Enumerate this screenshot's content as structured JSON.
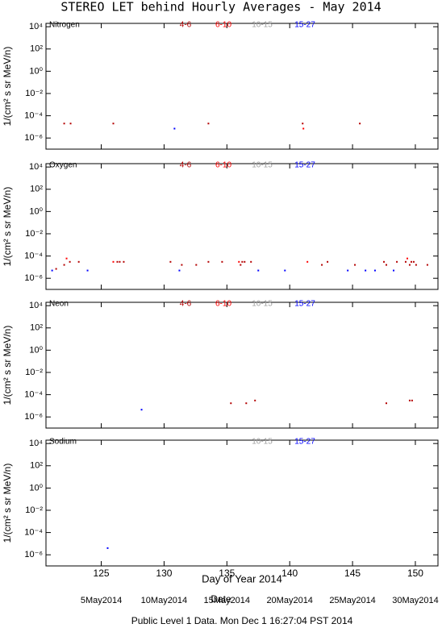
{
  "title": "STEREO LET behind Hourly Averages - May 2014",
  "footer": "Public Level 1 Data. Mon Dec  1 16:27:04 PST 2014",
  "date_axis": {
    "label": "Date",
    "ticks": [
      {
        "value": 125,
        "label": "5May2014"
      },
      {
        "value": 130,
        "label": "10May2014"
      },
      {
        "value": 135,
        "label": "15May2014"
      },
      {
        "value": 140,
        "label": "20May2014"
      },
      {
        "value": 145,
        "label": "25May2014"
      },
      {
        "value": 150,
        "label": "30May2014"
      }
    ]
  },
  "chart_data": [
    {
      "type": "scatter",
      "title": "Nitrogen",
      "ylabel": "1/(cm² s sr MeV/n)",
      "log_y": true,
      "xlim": [
        120.6,
        151.8
      ],
      "ylim": [
        1e-07,
        20000
      ],
      "xticks": [
        125,
        130,
        135,
        140,
        145,
        150
      ],
      "yticks": [
        {
          "value": 10000,
          "label": "10⁴"
        },
        {
          "value": 100,
          "label": "10²"
        },
        {
          "value": 1,
          "label": "10⁰"
        },
        {
          "value": 0.01,
          "label": "10⁻²"
        },
        {
          "value": 0.0001,
          "label": "10⁻⁴"
        },
        {
          "value": 1e-06,
          "label": "10⁻⁶"
        }
      ],
      "series": [
        {
          "name": "4-6",
          "color": "#b40000",
          "x": [
            122.05,
            122.56,
            125.96,
            133.53,
            141.03,
            145.58
          ],
          "values": [
            2e-05,
            2e-05,
            2e-05,
            2e-05,
            2e-05,
            2e-05
          ]
        },
        {
          "name": "6-10",
          "color": "#ff0000",
          "x": [
            141.09
          ],
          "values": [
            7e-06
          ]
        },
        {
          "name": "10-15",
          "color": "#a0a0a0",
          "x": [],
          "values": []
        },
        {
          "name": "15-27",
          "color": "#0000ff",
          "x": [
            130.83
          ],
          "values": [
            7e-06
          ]
        }
      ]
    },
    {
      "type": "scatter",
      "title": "Oxygen",
      "ylabel": "1/(cm² s sr MeV/n)",
      "log_y": true,
      "xlim": [
        120.6,
        151.8
      ],
      "ylim": [
        1e-07,
        20000
      ],
      "xticks": [
        125,
        130,
        135,
        140,
        145,
        150
      ],
      "yticks": [
        {
          "value": 10000,
          "label": "10⁴"
        },
        {
          "value": 100,
          "label": "10²"
        },
        {
          "value": 1,
          "label": "10⁰"
        },
        {
          "value": 0.01,
          "label": "10⁻²"
        },
        {
          "value": 0.0001,
          "label": "10⁻⁴"
        },
        {
          "value": 1e-06,
          "label": "10⁻⁶"
        }
      ],
      "series": [
        {
          "name": "4-6",
          "color": "#b40000",
          "x": [
            121.41,
            122.05,
            122.5,
            123.21,
            126.28,
            126.47,
            126.79,
            130.51,
            131.41,
            132.56,
            133.53,
            134.62,
            136.09,
            136.22,
            136.41,
            136.92,
            142.56,
            143.01,
            145.19,
            147.5,
            147.69,
            148.53,
            149.23,
            149.55,
            149.68,
            149.87,
            150.06,
            150.96
          ],
          "values": [
            7e-06,
            1.6e-05,
            3e-05,
            3e-05,
            3e-05,
            3e-05,
            3e-05,
            3e-05,
            1.6e-05,
            1.6e-05,
            3e-05,
            3e-05,
            1.6e-05,
            3e-05,
            3e-05,
            3e-05,
            1.6e-05,
            3e-05,
            1.6e-05,
            3e-05,
            1.6e-05,
            3e-05,
            3e-05,
            1.6e-05,
            3e-05,
            3e-05,
            1.6e-05,
            1.6e-05
          ]
        },
        {
          "name": "6-10",
          "color": "#ff0000",
          "x": [
            122.24,
            125.96,
            135.96,
            141.41,
            149.36
          ],
          "values": [
            6e-05,
            3e-05,
            3e-05,
            3e-05,
            6e-05
          ]
        },
        {
          "name": "10-15",
          "color": "#a0a0a0",
          "x": [],
          "values": []
        },
        {
          "name": "15-27",
          "color": "#0000ff",
          "x": [
            121.09,
            123.91,
            131.22,
            137.5,
            139.62,
            144.62,
            146.03,
            146.79,
            148.27
          ],
          "values": [
            5e-06,
            5e-06,
            5e-06,
            5e-06,
            5e-06,
            5e-06,
            5e-06,
            5e-06,
            5e-06
          ]
        }
      ]
    },
    {
      "type": "scatter",
      "title": "Neon",
      "ylabel": "1/(cm² s sr MeV/n)",
      "log_y": true,
      "xlim": [
        120.6,
        151.8
      ],
      "ylim": [
        1e-07,
        20000
      ],
      "xticks": [
        125,
        130,
        135,
        140,
        145,
        150
      ],
      "yticks": [
        {
          "value": 10000,
          "label": "10⁴"
        },
        {
          "value": 100,
          "label": "10²"
        },
        {
          "value": 1,
          "label": "10⁰"
        },
        {
          "value": 0.01,
          "label": "10⁻²"
        },
        {
          "value": 0.0001,
          "label": "10⁻⁴"
        },
        {
          "value": 1e-06,
          "label": "10⁻⁶"
        }
      ],
      "series": [
        {
          "name": "4-6",
          "color": "#b40000",
          "x": [
            135.32,
            136.54,
            137.24,
            147.69,
            149.55,
            149.74
          ],
          "values": [
            1.7e-05,
            1.7e-05,
            3e-05,
            1.7e-05,
            3e-05,
            3e-05
          ]
        },
        {
          "name": "6-10",
          "color": "#ff0000",
          "x": [],
          "values": []
        },
        {
          "name": "10-15",
          "color": "#a0a0a0",
          "x": [],
          "values": []
        },
        {
          "name": "15-27",
          "color": "#0000ff",
          "x": [
            128.21
          ],
          "values": [
            4.5e-06
          ]
        }
      ]
    },
    {
      "type": "scatter",
      "title": "Sodium",
      "ylabel": "1/(cm² s sr MeV/n)",
      "xlabel": "Day of Year 2014",
      "log_y": true,
      "xlim": [
        120.6,
        151.8
      ],
      "ylim": [
        1e-07,
        20000
      ],
      "xticks": [
        125,
        130,
        135,
        140,
        145,
        150
      ],
      "yticks": [
        {
          "value": 10000,
          "label": "10⁴"
        },
        {
          "value": 100,
          "label": "10²"
        },
        {
          "value": 1,
          "label": "10⁰"
        },
        {
          "value": 0.01,
          "label": "10⁻²"
        },
        {
          "value": 0.0001,
          "label": "10⁻⁴"
        },
        {
          "value": 1e-06,
          "label": "10⁻⁶"
        }
      ],
      "series": [
        {
          "name": "10-15",
          "color": "#a0a0a0",
          "x": [],
          "values": []
        },
        {
          "name": "15-27",
          "color": "#0000ff",
          "x": [
            125.51
          ],
          "values": [
            4e-06
          ]
        }
      ]
    }
  ]
}
